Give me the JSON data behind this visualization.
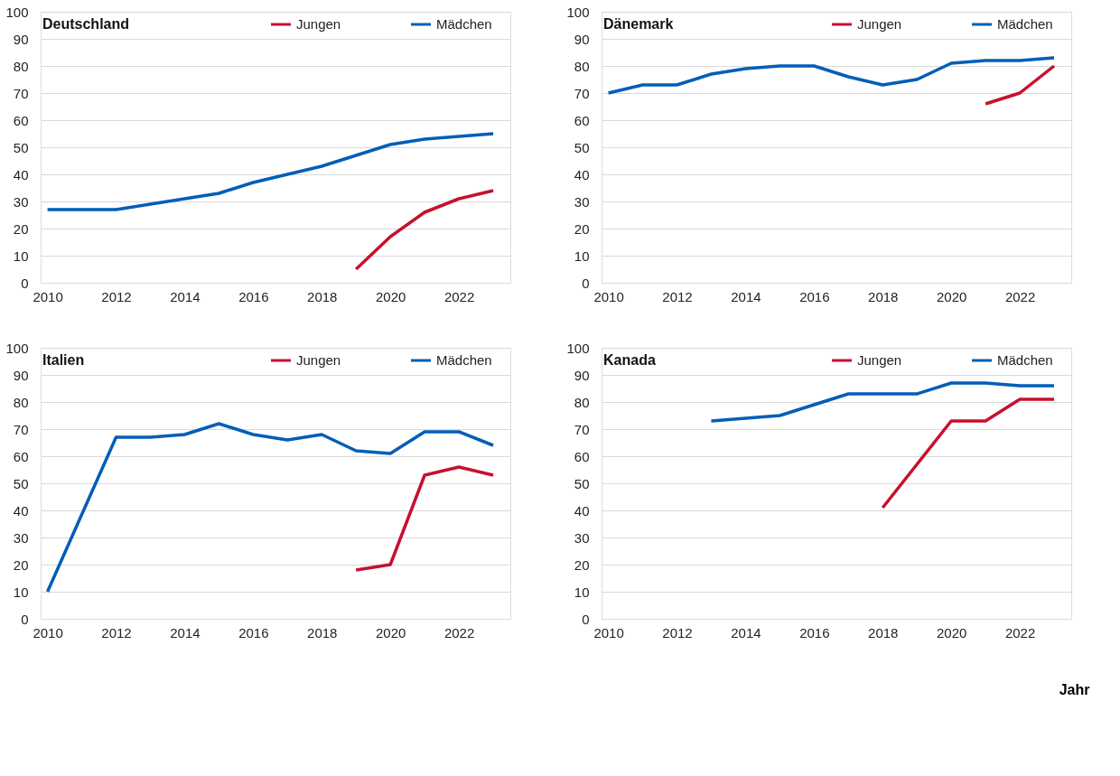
{
  "chart_data": [
    {
      "type": "line",
      "title": "Deutschland",
      "xlim": [
        2009.8,
        2023.5
      ],
      "xticks": [
        2010,
        2012,
        2014,
        2016,
        2018,
        2020,
        2022
      ],
      "ylim": [
        0,
        100
      ],
      "yticks": [
        0,
        10,
        20,
        30,
        40,
        50,
        60,
        70,
        80,
        90,
        100
      ],
      "grid": "y",
      "legend": "top right",
      "line_style": "solid",
      "marker": "none",
      "series": [
        {
          "name": "Jungen",
          "color": "#c8102e",
          "x": [
            2019,
            2020,
            2021,
            2022,
            2023
          ],
          "values": [
            5,
            17,
            26,
            31,
            34
          ]
        },
        {
          "name": "Mädchen",
          "color": "#005eb8",
          "x": [
            2010,
            2011,
            2012,
            2013,
            2014,
            2015,
            2016,
            2017,
            2018,
            2019,
            2020,
            2021,
            2022,
            2023
          ],
          "values": [
            27,
            27,
            27,
            29,
            31,
            33,
            37,
            40,
            43,
            47,
            51,
            53,
            54,
            55
          ]
        }
      ]
    },
    {
      "type": "line",
      "title": "Dänemark",
      "xlim": [
        2009.8,
        2023.5
      ],
      "xticks": [
        2010,
        2012,
        2014,
        2016,
        2018,
        2020,
        2022
      ],
      "ylim": [
        0,
        100
      ],
      "yticks": [
        0,
        10,
        20,
        30,
        40,
        50,
        60,
        70,
        80,
        90,
        100
      ],
      "grid": "y",
      "legend": "top right",
      "line_style": "solid",
      "marker": "none",
      "series": [
        {
          "name": "Jungen",
          "color": "#c8102e",
          "x": [
            2021,
            2022,
            2023
          ],
          "values": [
            66,
            70,
            80
          ]
        },
        {
          "name": "Mädchen",
          "color": "#005eb8",
          "x": [
            2010,
            2011,
            2012,
            2013,
            2014,
            2015,
            2016,
            2017,
            2018,
            2019,
            2020,
            2021,
            2022,
            2023
          ],
          "values": [
            70,
            73,
            73,
            77,
            79,
            80,
            80,
            76,
            73,
            75,
            81,
            82,
            82,
            83
          ]
        }
      ]
    },
    {
      "type": "line",
      "title": "Italien",
      "xlim": [
        2009.8,
        2023.5
      ],
      "xticks": [
        2010,
        2012,
        2014,
        2016,
        2018,
        2020,
        2022
      ],
      "ylim": [
        0,
        100
      ],
      "yticks": [
        0,
        10,
        20,
        30,
        40,
        50,
        60,
        70,
        80,
        90,
        100
      ],
      "grid": "y",
      "legend": "top right",
      "line_style": "solid",
      "marker": "none",
      "series": [
        {
          "name": "Jungen",
          "color": "#c8102e",
          "x": [
            2019,
            2020,
            2021,
            2022,
            2023
          ],
          "values": [
            18,
            20,
            53,
            56,
            53
          ]
        },
        {
          "name": "Mädchen",
          "color": "#005eb8",
          "x": [
            2010,
            2012,
            2013,
            2014,
            2015,
            2016,
            2017,
            2018,
            2019,
            2020,
            2021,
            2022,
            2023
          ],
          "values": [
            10,
            67,
            67,
            68,
            72,
            68,
            66,
            68,
            62,
            61,
            69,
            69,
            64
          ]
        }
      ]
    },
    {
      "type": "line",
      "title": "Kanada",
      "xlabel": "Jahr",
      "xlim": [
        2009.8,
        2023.5
      ],
      "xticks": [
        2010,
        2012,
        2014,
        2016,
        2018,
        2020,
        2022
      ],
      "ylim": [
        0,
        100
      ],
      "yticks": [
        0,
        10,
        20,
        30,
        40,
        50,
        60,
        70,
        80,
        90,
        100
      ],
      "grid": "y",
      "legend": "top right",
      "line_style": "solid",
      "marker": "none",
      "series": [
        {
          "name": "Jungen",
          "color": "#c8102e",
          "x": [
            2018,
            2020,
            2021,
            2022,
            2023
          ],
          "values": [
            41,
            73,
            73,
            81,
            81
          ]
        },
        {
          "name": "Mädchen",
          "color": "#005eb8",
          "x": [
            2013,
            2014,
            2015,
            2016,
            2017,
            2018,
            2019,
            2020,
            2021,
            2022,
            2023
          ],
          "values": [
            73,
            74,
            75,
            79,
            83,
            83,
            83,
            87,
            87,
            86,
            86
          ]
        }
      ]
    }
  ]
}
